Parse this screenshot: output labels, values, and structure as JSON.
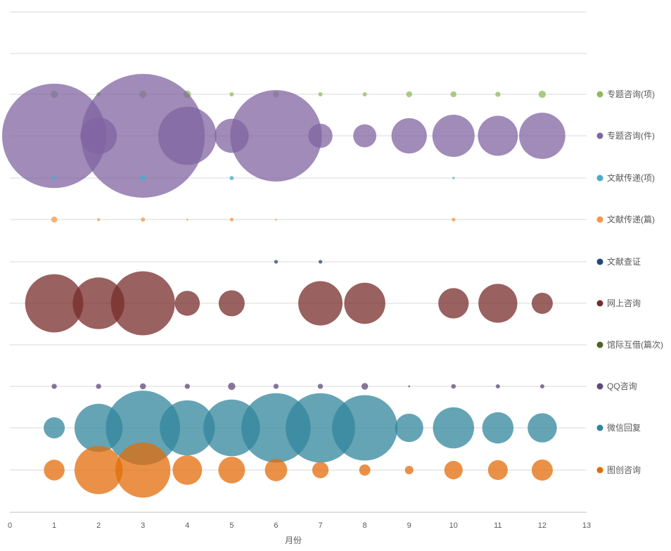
{
  "chart_data": {
    "type": "bubble",
    "xlabel": "月份",
    "xlim": [
      0,
      13
    ],
    "x_ticks": [
      0,
      1,
      2,
      3,
      4,
      5,
      6,
      7,
      8,
      9,
      10,
      11,
      12,
      13
    ],
    "grid": true,
    "legend_position": "right",
    "series": [
      {
        "name": "专题咨询(项)",
        "color": "#8fbc5a",
        "points": [
          [
            1,
            3
          ],
          [
            2,
            1
          ],
          [
            3,
            3
          ],
          [
            4,
            3
          ],
          [
            5,
            1
          ],
          [
            6,
            2
          ],
          [
            7,
            1
          ],
          [
            8,
            1
          ],
          [
            9,
            2
          ],
          [
            10,
            2
          ],
          [
            11,
            1.5
          ],
          [
            12,
            3
          ]
        ]
      },
      {
        "name": "专题咨询(件)",
        "color": "#8064a2",
        "points": [
          [
            1,
            610
          ],
          [
            2,
            75
          ],
          [
            3,
            860
          ],
          [
            4,
            190
          ],
          [
            5,
            65
          ],
          [
            6,
            470
          ],
          [
            7,
            33
          ],
          [
            8,
            30
          ],
          [
            9,
            70
          ],
          [
            10,
            100
          ],
          [
            11,
            90
          ],
          [
            12,
            120
          ]
        ]
      },
      {
        "name": "文献传递(项)",
        "color": "#4bacc6",
        "points": [
          [
            1,
            1
          ],
          [
            3,
            2
          ],
          [
            5,
            1
          ],
          [
            10,
            0.3
          ]
        ]
      },
      {
        "name": "文献传递(篇)",
        "color": "#f79646",
        "points": [
          [
            1,
            2
          ],
          [
            2,
            0.5
          ],
          [
            3,
            1
          ],
          [
            4,
            0.2
          ],
          [
            5,
            0.8
          ],
          [
            6,
            0.2
          ],
          [
            10,
            0.8
          ]
        ]
      },
      {
        "name": "文献查证",
        "color": "#1f497d",
        "points": [
          [
            6,
            0.8
          ],
          [
            7,
            0.8
          ]
        ]
      },
      {
        "name": "网上咨询",
        "color": "#772c2a",
        "points": [
          [
            1,
            190
          ],
          [
            2,
            150
          ],
          [
            3,
            230
          ],
          [
            4,
            35
          ],
          [
            5,
            38
          ],
          [
            7,
            110
          ],
          [
            8,
            95
          ],
          [
            10,
            52
          ],
          [
            11,
            85
          ],
          [
            12,
            25
          ]
        ]
      },
      {
        "name": "馆际互借(篇次)",
        "color": "#4f6228",
        "points": []
      },
      {
        "name": "QQ咨询",
        "color": "#5f497a",
        "points": [
          [
            1,
            1.5
          ],
          [
            2,
            1.5
          ],
          [
            3,
            2
          ],
          [
            4,
            1.5
          ],
          [
            5,
            3
          ],
          [
            6,
            1.5
          ],
          [
            7,
            1.5
          ],
          [
            8,
            2.5
          ],
          [
            9,
            0.2
          ],
          [
            10,
            1.2
          ],
          [
            11,
            1
          ],
          [
            12,
            1
          ]
        ]
      },
      {
        "name": "微信回复",
        "color": "#31859c",
        "points": [
          [
            1,
            25
          ],
          [
            2,
            130
          ],
          [
            3,
            310
          ],
          [
            4,
            170
          ],
          [
            5,
            180
          ],
          [
            6,
            270
          ],
          [
            7,
            270
          ],
          [
            8,
            240
          ],
          [
            9,
            45
          ],
          [
            10,
            95
          ],
          [
            11,
            55
          ],
          [
            12,
            48
          ]
        ]
      },
      {
        "name": "图创咨询",
        "color": "#e36c09",
        "points": [
          [
            1,
            24
          ],
          [
            2,
            130
          ],
          [
            3,
            170
          ],
          [
            4,
            49
          ],
          [
            5,
            40
          ],
          [
            6,
            28
          ],
          [
            7,
            15
          ],
          [
            8,
            7
          ],
          [
            9,
            4
          ],
          [
            10,
            19
          ],
          [
            11,
            22
          ],
          [
            12,
            25
          ]
        ]
      }
    ]
  }
}
